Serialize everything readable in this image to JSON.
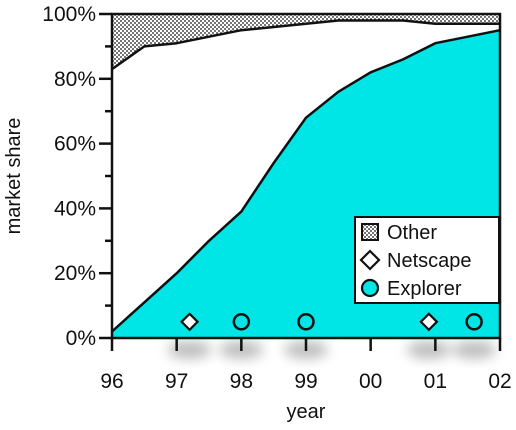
{
  "chart_data": {
    "type": "area",
    "title": "",
    "xlabel": "year",
    "ylabel": "market share",
    "x": [
      96,
      97,
      98,
      99,
      100,
      101,
      102
    ],
    "x_tick_labels": [
      "96",
      "97",
      "98",
      "99",
      "00",
      "01",
      "02"
    ],
    "y_tick_labels": [
      "0%",
      "20%",
      "40%",
      "60%",
      "80%",
      "100%"
    ],
    "y_ticks": [
      0,
      20,
      40,
      60,
      80,
      100
    ],
    "xlim": [
      96,
      102
    ],
    "ylim": [
      0,
      100
    ],
    "stacked": true,
    "series": [
      {
        "name": "Explorer",
        "x": [
          96,
          96.5,
          97,
          97.5,
          98,
          98.5,
          99,
          99.5,
          100,
          100.5,
          101,
          101.5,
          102
        ],
        "values": [
          2,
          11,
          20,
          30,
          39,
          54,
          68,
          76,
          82,
          86,
          91,
          93,
          95
        ],
        "color": "#00e5e5",
        "marker": "circle",
        "marker_x": [
          98,
          99,
          101.6
        ]
      },
      {
        "name": "Netscape",
        "x": [
          96,
          96.5,
          97,
          97.5,
          98,
          98.5,
          99,
          99.5,
          100,
          100.5,
          101,
          101.5,
          102
        ],
        "values": [
          81,
          79,
          71,
          63,
          56,
          42,
          29,
          22,
          16,
          12,
          6,
          4,
          2
        ],
        "color": "#ffffff",
        "marker": "diamond",
        "marker_x": [
          97.2,
          100.9
        ]
      },
      {
        "name": "Other",
        "x": [
          96,
          96.5,
          97,
          97.5,
          98,
          98.5,
          99,
          99.5,
          100,
          100.5,
          101,
          101.5,
          102
        ],
        "values": [
          17,
          10,
          9,
          7,
          5,
          4,
          3,
          2,
          2,
          2,
          3,
          3,
          3
        ],
        "color": "#ffffff",
        "pattern": "dots",
        "marker": "square"
      }
    ],
    "marker_y": 5,
    "legend": {
      "placement": "bottom-right",
      "order": [
        "Other",
        "Netscape",
        "Explorer"
      ]
    },
    "grid": false
  }
}
